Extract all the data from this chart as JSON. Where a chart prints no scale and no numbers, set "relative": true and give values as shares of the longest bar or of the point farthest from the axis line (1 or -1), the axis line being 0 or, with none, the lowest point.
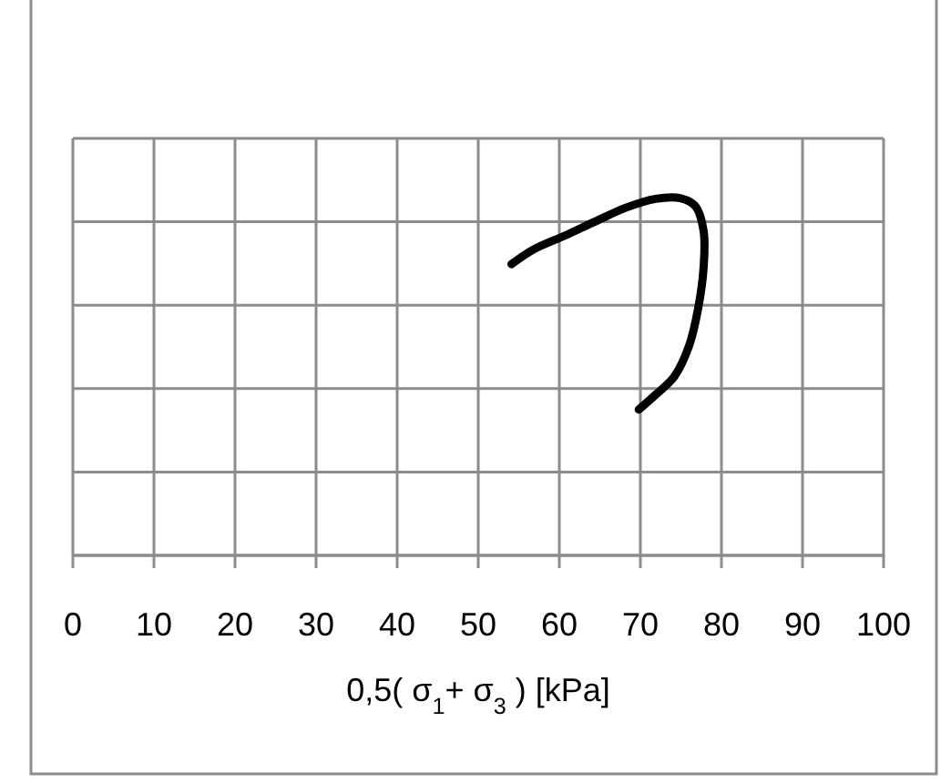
{
  "chart_data": {
    "type": "line",
    "xlabel": "0,5( σ$_{1}$+ σ$_{3}$ ) [kPa]",
    "relative": true,
    "xlim": [
      0,
      100
    ],
    "xticks": [
      0,
      10,
      20,
      30,
      40,
      50,
      60,
      70,
      80,
      90,
      100
    ],
    "grid": true,
    "series": [
      {
        "color": "#000000",
        "x": [
          54.1,
          56.9,
          60.7,
          64.4,
          68.2,
          71.9,
          74.9,
          76.8,
          77.8,
          77.8,
          77.1,
          76.0,
          74.2,
          71.9,
          69.8
        ],
        "values": [
          0.815,
          0.857,
          0.895,
          0.934,
          0.973,
          0.998,
          1,
          0.977,
          0.908,
          0.806,
          0.688,
          0.586,
          0.501,
          0.45,
          0.408
        ]
      }
    ]
  }
}
